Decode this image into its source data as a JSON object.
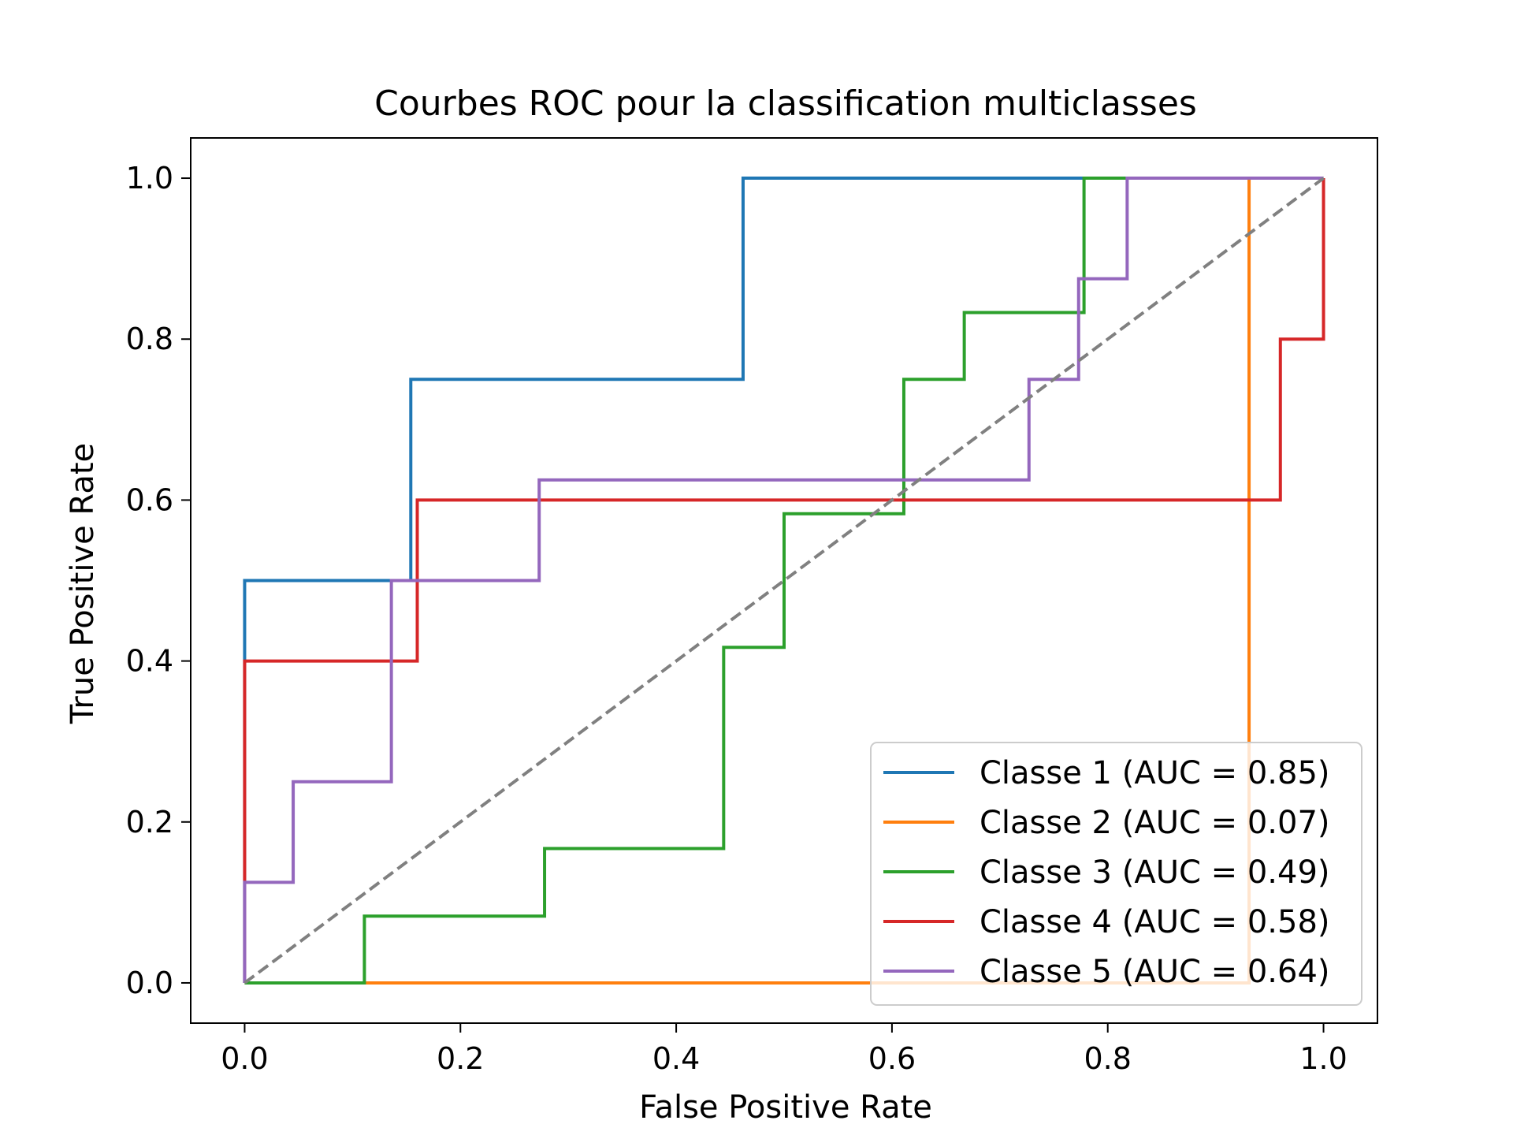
{
  "chart_data": {
    "type": "line",
    "title": "Courbes ROC pour la classification multiclasses",
    "xlabel": "False Positive Rate",
    "ylabel": "True Positive Rate",
    "xlim": [
      -0.05,
      1.05
    ],
    "ylim": [
      -0.05,
      1.05
    ],
    "xticks": [
      0.0,
      0.2,
      0.4,
      0.6,
      0.8,
      1.0
    ],
    "yticks": [
      0.0,
      0.2,
      0.4,
      0.6,
      0.8,
      1.0
    ],
    "xtick_labels": [
      "0.0",
      "0.2",
      "0.4",
      "0.6",
      "0.8",
      "1.0"
    ],
    "ytick_labels": [
      "0.0",
      "0.2",
      "0.4",
      "0.6",
      "0.8",
      "1.0"
    ],
    "grid": false,
    "legend_position": "lower-right",
    "series": [
      {
        "name": "Classe 1 (AUC = 0.85)",
        "color": "#1f77b4",
        "x": [
          0,
          0,
          0,
          0.154,
          0.154,
          0.462,
          0.462,
          1.0
        ],
        "y": [
          0,
          0.5,
          0.5,
          0.5,
          0.75,
          0.75,
          1.0,
          1.0
        ]
      },
      {
        "name": "Classe 2 (AUC = 0.07)",
        "color": "#ff7f0e",
        "x": [
          0,
          0.931,
          0.931,
          1.0
        ],
        "y": [
          0,
          0,
          1.0,
          1.0
        ]
      },
      {
        "name": "Classe 3 (AUC = 0.49)",
        "color": "#2ca02c",
        "x": [
          0,
          0.111,
          0.111,
          0.278,
          0.278,
          0.444,
          0.444,
          0.5,
          0.5,
          0.611,
          0.611,
          0.667,
          0.667,
          0.778,
          0.778,
          1.0
        ],
        "y": [
          0,
          0,
          0.083,
          0.083,
          0.167,
          0.167,
          0.417,
          0.417,
          0.583,
          0.583,
          0.75,
          0.75,
          0.833,
          0.833,
          1.0,
          1.0
        ]
      },
      {
        "name": "Classe 4 (AUC = 0.58)",
        "color": "#d62728",
        "x": [
          0,
          0,
          0.16,
          0.16,
          0.96,
          0.96,
          1.0,
          1.0
        ],
        "y": [
          0,
          0.4,
          0.4,
          0.6,
          0.6,
          0.8,
          0.8,
          1.0
        ]
      },
      {
        "name": "Classe 5 (AUC = 0.64)",
        "color": "#9467bd",
        "x": [
          0,
          0,
          0.045,
          0.045,
          0.136,
          0.136,
          0.273,
          0.273,
          0.727,
          0.727,
          0.773,
          0.773,
          0.818,
          0.818,
          1.0
        ],
        "y": [
          0,
          0.125,
          0.125,
          0.25,
          0.25,
          0.5,
          0.5,
          0.625,
          0.625,
          0.75,
          0.75,
          0.875,
          0.875,
          1.0,
          1.0
        ]
      }
    ],
    "reference_line": {
      "x": [
        0,
        1
      ],
      "y": [
        0,
        1
      ],
      "color": "#808080",
      "style": "dashed"
    }
  }
}
